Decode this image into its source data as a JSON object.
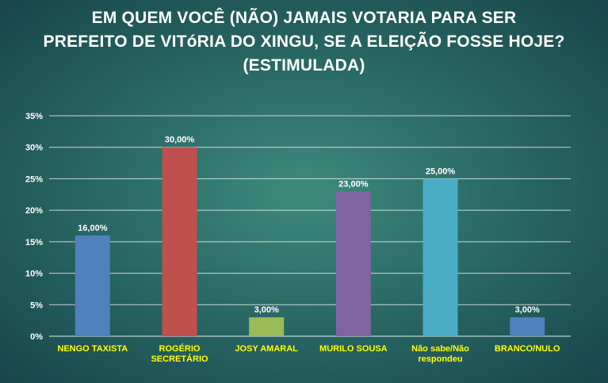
{
  "chart_data": {
    "type": "bar",
    "title_lines": [
      "EM QUEM VOCÊ (NÃO) JAMAIS VOTARIA PARA SER",
      "PREFEITO DE VITóRIA DO XINGU, SE A ELEIÇÃO FOSSE HOJE?",
      "(ESTIMULADA)"
    ],
    "categories": [
      [
        "NENGO TAXISTA"
      ],
      [
        "ROGÉRIO",
        "SECRETÁRIO"
      ],
      [
        "JOSY AMARAL"
      ],
      [
        "MURILO SOUSA"
      ],
      [
        "Não sabe/Não",
        "respondeu"
      ],
      [
        "BRANCO/NULO"
      ]
    ],
    "values": [
      16,
      30,
      3,
      23,
      25,
      3
    ],
    "data_labels": [
      "16,00%",
      "30,00%",
      "3,00%",
      "23,00%",
      "25,00%",
      "3,00%"
    ],
    "colors": [
      "#4f81bd",
      "#c0504d",
      "#9bbb59",
      "#8064a2",
      "#4bacc6",
      "#4f81bd"
    ],
    "yticks": [
      0,
      5,
      10,
      15,
      20,
      25,
      30,
      35
    ],
    "ytick_labels": [
      "0%",
      "5%",
      "10%",
      "15%",
      "20%",
      "25%",
      "30%",
      "35%"
    ],
    "ylim": [
      0,
      35
    ],
    "grid": true,
    "xlabel": "",
    "ylabel": ""
  }
}
